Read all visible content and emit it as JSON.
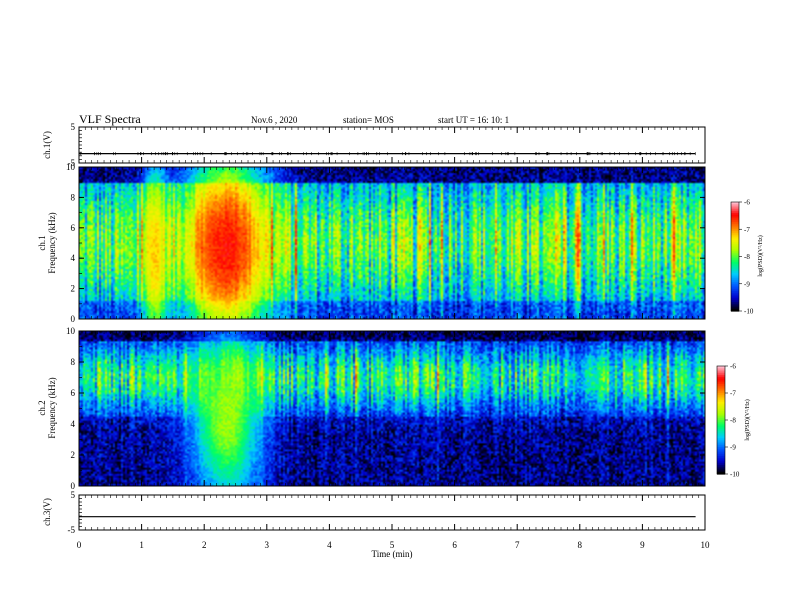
{
  "header": {
    "title": "VLF Spectra",
    "date": "Nov.6 , 2020",
    "station": "station= MOS",
    "start": "start UT = 16: 10: 1"
  },
  "chart_data": [
    {
      "type": "line",
      "name": "ch1-waveform",
      "ylabel": "ch.1(V)",
      "xlim": [
        0,
        10
      ],
      "ylim": [
        -5,
        5
      ],
      "yticks": [
        "5",
        "-5"
      ],
      "trace_level": -2.4
    },
    {
      "type": "heatmap",
      "name": "ch1-spectrogram",
      "ylabel": "ch.1\nFrequency (kHz)",
      "xlim": [
        0,
        10
      ],
      "ylim": [
        0,
        10
      ],
      "yticks": [
        "0",
        "2",
        "4",
        "6",
        "8",
        "10"
      ],
      "colorbar": {
        "label": "log(PSD)(V²/Hz)",
        "range": [
          -10,
          -6
        ],
        "ticks": [
          "-6",
          "-7",
          "-8",
          "-9",
          "-10"
        ]
      },
      "features": [
        {
          "label": "strong broadband emission",
          "t_min": [
            1.8,
            2.9
          ],
          "freq_khz": [
            0.5,
            8.8
          ],
          "log_psd": -6.5
        },
        {
          "label": "enhanced emission",
          "t_min": [
            1.05,
            1.35
          ],
          "freq_khz": [
            0.5,
            8.0
          ],
          "log_psd": -7.2
        },
        {
          "label": "upper cutoff",
          "freq_khz": 9.0
        }
      ]
    },
    {
      "type": "heatmap",
      "name": "ch2-spectrogram",
      "ylabel": "ch.2\nFrequency (kHz)",
      "xlim": [
        0,
        10
      ],
      "ylim": [
        0,
        10
      ],
      "yticks": [
        "0",
        "2",
        "4",
        "6",
        "8",
        "10"
      ],
      "colorbar": {
        "label": "log(PSD)(V²/Hz)",
        "range": [
          -10,
          -6
        ],
        "ticks": [
          "-6",
          "-7",
          "-8",
          "-9",
          "-10"
        ]
      },
      "features": [
        {
          "label": "enhanced emission",
          "t_min": [
            1.9,
            2.8
          ],
          "freq_khz": [
            0.5,
            8.0
          ],
          "log_psd": -7.8
        },
        {
          "label": "band peak",
          "freq_khz": 7.0
        }
      ]
    },
    {
      "type": "line",
      "name": "ch3-waveform",
      "ylabel": "ch.3(V)",
      "xlim": [
        0,
        10
      ],
      "ylim": [
        -5,
        5
      ],
      "yticks": [
        "5",
        "-5"
      ],
      "trace_level": -1.2
    }
  ],
  "xaxis": {
    "label": "Time (min)",
    "ticks": [
      "0",
      "1",
      "2",
      "3",
      "4",
      "5",
      "6",
      "7",
      "8",
      "9",
      "10"
    ]
  },
  "colors": {
    "colormap": [
      "#000000",
      "#0000cc",
      "#0055ff",
      "#00ccff",
      "#00ff66",
      "#aaff00",
      "#ffee00",
      "#ff7700",
      "#ff0000",
      "#ffbbcc"
    ],
    "trace": "#000000"
  }
}
